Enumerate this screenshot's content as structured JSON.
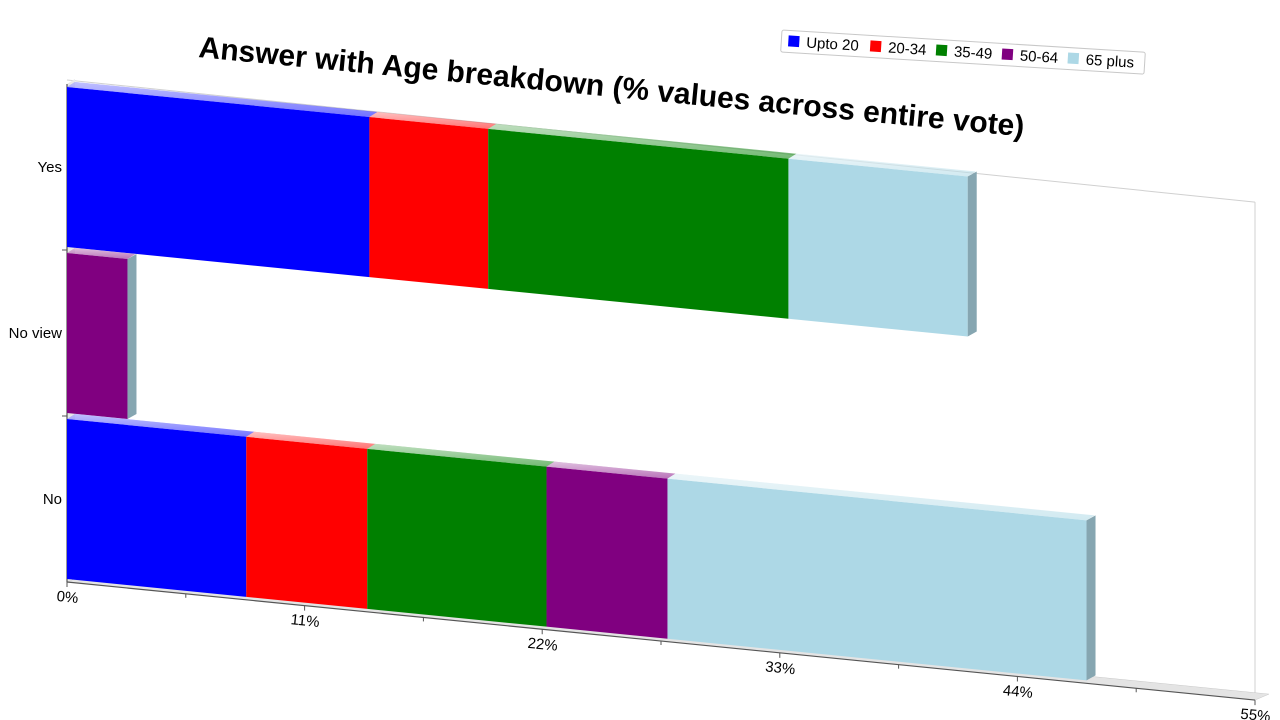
{
  "chart_data": {
    "type": "bar",
    "orientation": "horizontal",
    "stacked": true,
    "style": "3d-perspective",
    "title": "Answer with Age breakdown (% values across entire vote)",
    "categories": [
      "Yes",
      "No view",
      "No"
    ],
    "series": [
      {
        "name": "Upto 20",
        "color": "#0000ff",
        "values": [
          14.0,
          0,
          8.3
        ]
      },
      {
        "name": "20-34",
        "color": "#ff0000",
        "values": [
          5.5,
          0,
          5.6
        ]
      },
      {
        "name": "35-49",
        "color": "#008000",
        "values": [
          13.9,
          0,
          8.3
        ]
      },
      {
        "name": "50-64",
        "color": "#800080",
        "values": [
          0,
          2.8,
          5.6
        ]
      },
      {
        "name": "65 plus",
        "color": "#add8e6",
        "values": [
          8.3,
          0,
          19.4
        ]
      }
    ],
    "x_ticks": [
      "0%",
      "11%",
      "22%",
      "33%",
      "44%",
      "55%"
    ],
    "xlim": [
      0,
      55
    ],
    "legend_position": "top-right",
    "grid": false
  }
}
